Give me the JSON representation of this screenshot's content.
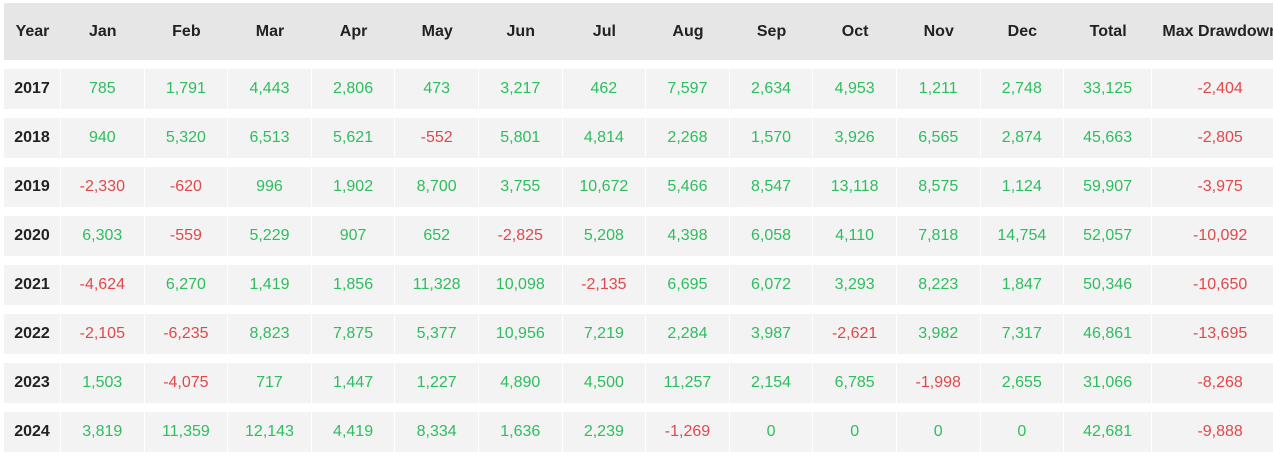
{
  "colors": {
    "positive": "#2ebd5f",
    "negative": "#e0484b",
    "header_bg": "#e6e6e6",
    "row_bg": "#f3f3f3"
  },
  "headers": [
    "Year",
    "Jan",
    "Feb",
    "Mar",
    "Apr",
    "May",
    "Jun",
    "Jul",
    "Aug",
    "Sep",
    "Oct",
    "Nov",
    "Dec",
    "Total",
    "Max Drawdown"
  ],
  "rows": [
    {
      "year": "2017",
      "cells": [
        "785",
        "1,791",
        "4,443",
        "2,806",
        "473",
        "3,217",
        "462",
        "7,597",
        "2,634",
        "4,953",
        "1,211",
        "2,748",
        "33,125",
        "-2,404"
      ]
    },
    {
      "year": "2018",
      "cells": [
        "940",
        "5,320",
        "6,513",
        "5,621",
        "-552",
        "5,801",
        "4,814",
        "2,268",
        "1,570",
        "3,926",
        "6,565",
        "2,874",
        "45,663",
        "-2,805"
      ]
    },
    {
      "year": "2019",
      "cells": [
        "-2,330",
        "-620",
        "996",
        "1,902",
        "8,700",
        "3,755",
        "10,672",
        "5,466",
        "8,547",
        "13,118",
        "8,575",
        "1,124",
        "59,907",
        "-3,975"
      ]
    },
    {
      "year": "2020",
      "cells": [
        "6,303",
        "-559",
        "5,229",
        "907",
        "652",
        "-2,825",
        "5,208",
        "4,398",
        "6,058",
        "4,110",
        "7,818",
        "14,754",
        "52,057",
        "-10,092"
      ]
    },
    {
      "year": "2021",
      "cells": [
        "-4,624",
        "6,270",
        "1,419",
        "1,856",
        "11,328",
        "10,098",
        "-2,135",
        "6,695",
        "6,072",
        "3,293",
        "8,223",
        "1,847",
        "50,346",
        "-10,650"
      ]
    },
    {
      "year": "2022",
      "cells": [
        "-2,105",
        "-6,235",
        "8,823",
        "7,875",
        "5,377",
        "10,956",
        "7,219",
        "2,284",
        "3,987",
        "-2,621",
        "3,982",
        "7,317",
        "46,861",
        "-13,695"
      ]
    },
    {
      "year": "2023",
      "cells": [
        "1,503",
        "-4,075",
        "717",
        "1,447",
        "1,227",
        "4,890",
        "4,500",
        "11,257",
        "2,154",
        "6,785",
        "-1,998",
        "2,655",
        "31,066",
        "-8,268"
      ]
    },
    {
      "year": "2024",
      "cells": [
        "3,819",
        "11,359",
        "12,143",
        "4,419",
        "8,334",
        "1,636",
        "2,239",
        "-1,269",
        "0",
        "0",
        "0",
        "0",
        "42,681",
        "-9,888"
      ]
    }
  ]
}
